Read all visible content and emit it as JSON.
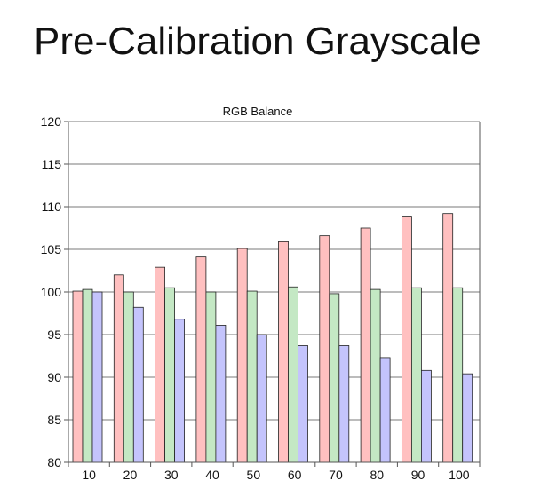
{
  "page": {
    "title": "Pre-Calibration Grayscale"
  },
  "colors": {
    "red": "#ffc0c0",
    "green": "#c4e8c4",
    "blue": "#c4c4fc",
    "grid": "#7a7a7a",
    "axis": "#555555"
  },
  "chart_data": {
    "type": "bar",
    "title": "RGB Balance",
    "xlabel": "",
    "ylabel": "",
    "categories": [
      "10",
      "20",
      "30",
      "40",
      "50",
      "60",
      "70",
      "80",
      "90",
      "100"
    ],
    "ylim": [
      80,
      120
    ],
    "yticks": [
      80,
      85,
      90,
      95,
      100,
      105,
      110,
      115,
      120
    ],
    "grid": true,
    "legend": "none",
    "series": [
      {
        "color": "#ffc0c0",
        "values": [
          100.1,
          102.0,
          102.9,
          104.1,
          105.1,
          105.9,
          106.6,
          107.5,
          108.9,
          109.2
        ]
      },
      {
        "color": "#c4e8c4",
        "values": [
          100.3,
          100.0,
          100.5,
          100.0,
          100.1,
          100.6,
          99.8,
          100.3,
          100.5,
          100.5
        ]
      },
      {
        "color": "#c4c4fc",
        "values": [
          100.0,
          98.2,
          96.8,
          96.1,
          95.0,
          93.7,
          93.7,
          92.3,
          90.8,
          90.4
        ]
      }
    ]
  }
}
